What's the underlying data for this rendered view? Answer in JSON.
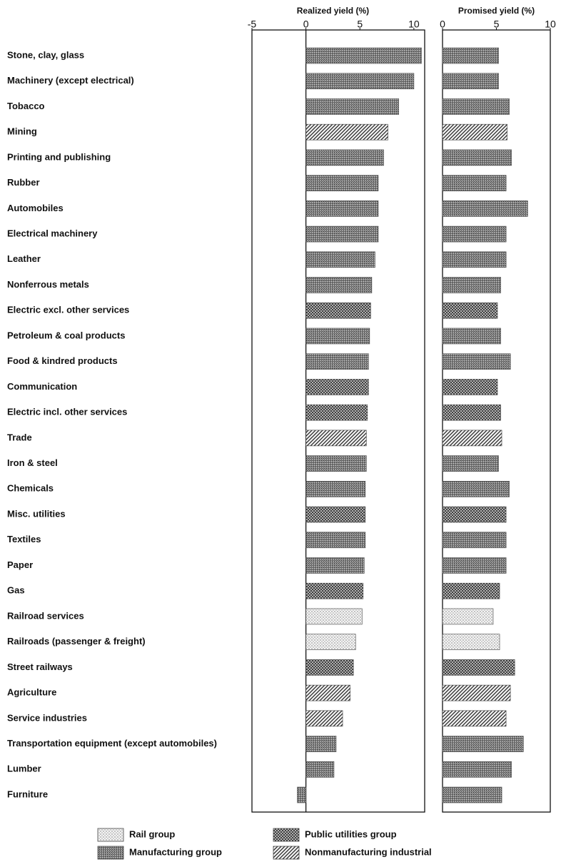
{
  "chart_data": [
    {
      "type": "bar",
      "orientation": "horizontal",
      "title": "Realized yield (%)",
      "categories": [
        "Stone, clay, glass",
        "Machinery (except electrical)",
        "Tobacco",
        "Mining",
        "Printing and publishing",
        "Rubber",
        "Automobiles",
        "Electrical machinery",
        "Leather",
        "Nonferrous metals",
        "Electric excl. other services",
        "Petroleum & coal products",
        "Food & kindred products",
        "Communication",
        "Electric incl. other services",
        "Trade",
        "Iron & steel",
        "Chemicals",
        "Misc. utilities",
        "Textiles",
        "Paper",
        "Gas",
        "Railroad services",
        "Railroads (passenger & freight)",
        "Street railways",
        "Agriculture",
        "Service industries",
        "Transportation equipment (except automobiles)",
        "Lumber",
        "Furniture"
      ],
      "category_groups": [
        1,
        1,
        1,
        3,
        1,
        1,
        1,
        1,
        1,
        1,
        2,
        1,
        1,
        2,
        2,
        3,
        1,
        1,
        2,
        1,
        1,
        2,
        0,
        0,
        2,
        3,
        3,
        1,
        1,
        1
      ],
      "groups": [
        {
          "name": "Rail group",
          "pattern": "dots"
        },
        {
          "name": "Manufacturing group",
          "pattern": "stipple"
        },
        {
          "name": "Public utilities group",
          "pattern": "crosshatch"
        },
        {
          "name": "Nonmanufacturing industrial",
          "pattern": "hatch"
        }
      ],
      "values": [
        10.7,
        10.0,
        8.6,
        7.6,
        7.2,
        6.7,
        6.7,
        6.7,
        6.4,
        6.1,
        6.0,
        5.9,
        5.8,
        5.8,
        5.7,
        5.6,
        5.6,
        5.5,
        5.5,
        5.5,
        5.4,
        5.3,
        5.2,
        4.6,
        4.4,
        4.1,
        3.4,
        2.8,
        2.6,
        -0.8
      ],
      "xlim": [
        -5,
        11
      ],
      "xticks": [
        -5,
        0,
        5,
        10
      ],
      "zero_line": true
    },
    {
      "type": "bar",
      "orientation": "horizontal",
      "title": "Promised yield (%)",
      "values": [
        5.2,
        5.2,
        6.2,
        6.0,
        6.4,
        5.9,
        7.9,
        5.9,
        5.9,
        5.4,
        5.1,
        5.4,
        6.3,
        5.1,
        5.4,
        5.5,
        5.2,
        6.2,
        5.9,
        5.9,
        5.9,
        5.3,
        4.7,
        5.3,
        6.7,
        6.3,
        5.9,
        7.5,
        6.4,
        5.5
      ],
      "xlim": [
        0,
        10
      ],
      "xticks": [
        0,
        5,
        10
      ]
    }
  ]
}
